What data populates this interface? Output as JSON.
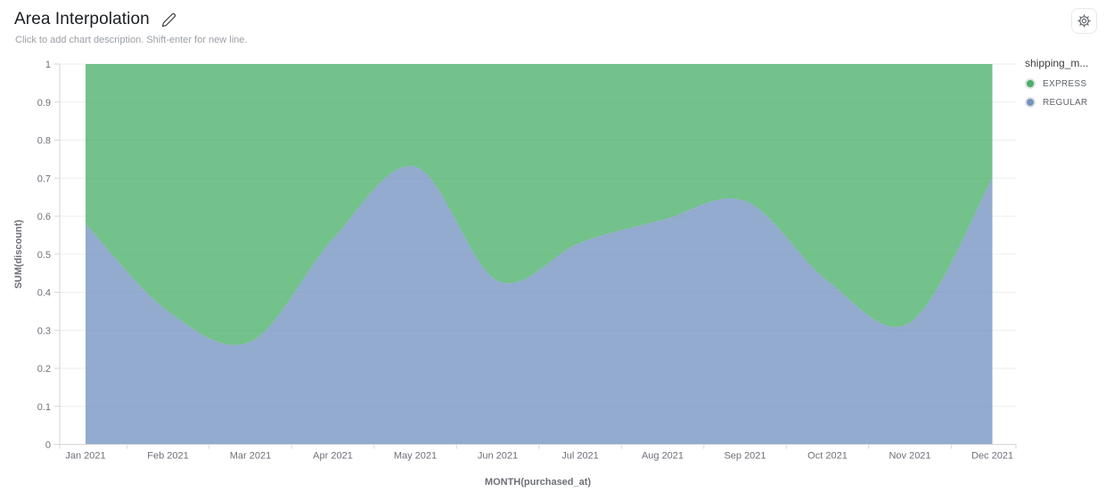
{
  "header": {
    "title": "Area Interpolation",
    "subtitle": "Click to add chart description. Shift-enter for new line."
  },
  "legend": {
    "title": "shipping_m...",
    "items": [
      {
        "id": "express",
        "label": "EXPRESS",
        "color": "#4caf6a"
      },
      {
        "id": "regular",
        "label": "REGULAR",
        "color": "#7394c0"
      }
    ]
  },
  "chart_data": {
    "type": "area",
    "variant": "stacked-normalized-smooth",
    "title": "Area Interpolation",
    "xlabel": "MONTH(purchased_at)",
    "ylabel": "SUM(discount)",
    "ylim": [
      0,
      1
    ],
    "y_ticks": [
      "0",
      "0.1",
      "0.2",
      "0.3",
      "0.4",
      "0.5",
      "0.6",
      "0.7",
      "0.8",
      "0.9",
      "1"
    ],
    "grid": true,
    "legend_position": "right",
    "categories": [
      "Jan 2021",
      "Feb 2021",
      "Mar 2021",
      "Apr 2021",
      "May 2021",
      "Jun 2021",
      "Jul 2021",
      "Aug 2021",
      "Sep 2021",
      "Oct 2021",
      "Nov 2021",
      "Dec 2021"
    ],
    "series": [
      {
        "name": "REGULAR",
        "color": "#7394c0",
        "values": [
          0.58,
          0.35,
          0.27,
          0.54,
          0.73,
          0.43,
          0.53,
          0.59,
          0.64,
          0.43,
          0.32,
          0.7
        ]
      },
      {
        "name": "EXPRESS",
        "color": "#4caf6a",
        "values": [
          0.42,
          0.65,
          0.73,
          0.46,
          0.27,
          0.57,
          0.47,
          0.41,
          0.36,
          0.57,
          0.68,
          0.3
        ]
      }
    ]
  }
}
